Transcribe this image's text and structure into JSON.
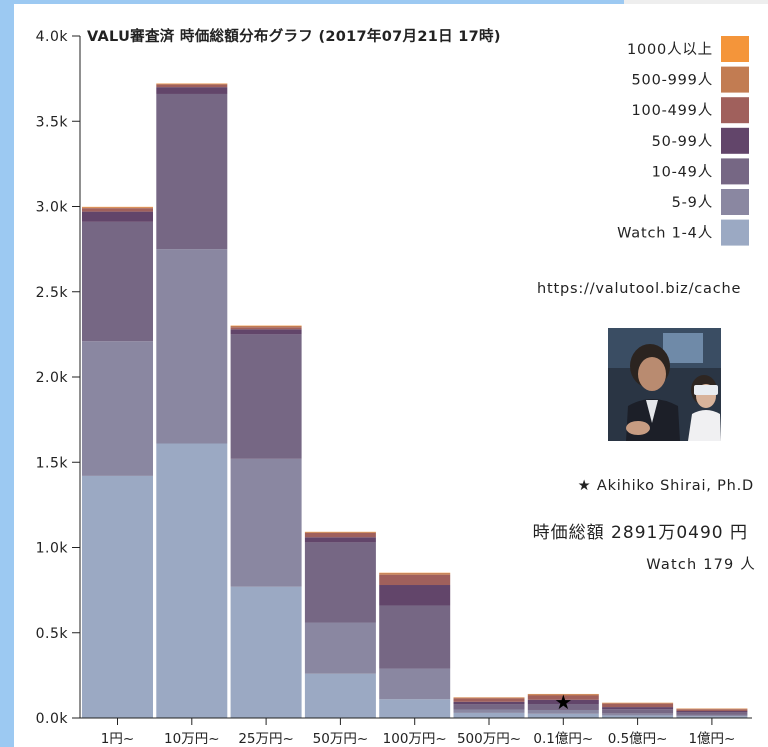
{
  "chart_data": {
    "type": "bar",
    "stacked": true,
    "title": "VALU審査済 時価総額分布グラフ (2017年07月21日 17時)",
    "categories": [
      "1円~",
      "10万円~",
      "25万円~",
      "50万円~",
      "100万円~",
      "500万円~",
      "0.1億円~",
      "0.5億円~",
      "1億円~"
    ],
    "ylim": [
      0,
      4000
    ],
    "yticks": [
      "0.0k",
      "0.5k",
      "1.0k",
      "1.5k",
      "2.0k",
      "2.5k",
      "3.0k",
      "3.5k",
      "4.0k"
    ],
    "series": [
      {
        "name": "Watch 1-4人",
        "color": "#9ba9c3",
        "values": [
          1420,
          1610,
          770,
          260,
          110,
          30,
          25,
          15,
          10
        ]
      },
      {
        "name": "5-9人",
        "color": "#8a87a1",
        "values": [
          790,
          1140,
          750,
          300,
          180,
          20,
          22,
          12,
          8
        ]
      },
      {
        "name": "10-49人",
        "color": "#766784",
        "values": [
          700,
          910,
          730,
          470,
          370,
          30,
          35,
          25,
          15
        ]
      },
      {
        "name": "50-99人",
        "color": "#62456a",
        "values": [
          60,
          40,
          30,
          30,
          120,
          15,
          25,
          12,
          8
        ]
      },
      {
        "name": "100-499人",
        "color": "#a0605c",
        "values": [
          20,
          15,
          12,
          25,
          60,
          20,
          25,
          20,
          10
        ]
      },
      {
        "name": "500-999人",
        "color": "#c27c52",
        "values": [
          5,
          5,
          8,
          5,
          10,
          5,
          8,
          5,
          4
        ]
      },
      {
        "name": "1000人以上",
        "color": "#f4953a",
        "values": [
          3,
          2,
          2,
          2,
          2,
          1,
          1,
          1,
          1
        ]
      }
    ],
    "marker": {
      "symbol": "★",
      "category": "0.1億円~",
      "value": 100
    },
    "legend_position": "top-right"
  },
  "info": {
    "url": "https://valutool.biz/cache",
    "person": "★ Akihiko Shirai, Ph.D",
    "market_value": "時価総額 2891万0490 円",
    "watch": "Watch 179 人"
  },
  "colors": {
    "frame": "#9cc9f2",
    "bar_gap": "#ffffff"
  }
}
